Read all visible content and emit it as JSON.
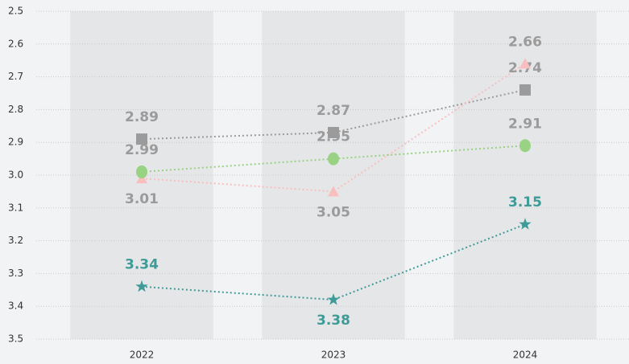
{
  "chart_data": {
    "type": "line",
    "categories": [
      "2022",
      "2023",
      "2024"
    ],
    "series": [
      {
        "color": "#9b9b9b",
        "label_color": "#9b9b9b",
        "marker": "square",
        "label_positions": [
          "above",
          "above",
          "above"
        ],
        "values": [
          2.89,
          2.87,
          2.74
        ]
      },
      {
        "color": "#f8bfbe",
        "label_color": "#9b9b9b",
        "marker": "triangle",
        "label_positions": [
          "below",
          "below",
          "above"
        ],
        "values": [
          3.01,
          3.05,
          2.66
        ]
      },
      {
        "color": "#98d282",
        "label_color": "#9b9b9b",
        "marker": "circle",
        "label_positions": [
          "above",
          "above",
          "above"
        ],
        "values": [
          2.99,
          2.95,
          2.91
        ]
      },
      {
        "color": "#3f9b97",
        "label_color": "#3f9b97",
        "marker": "star",
        "label_positions": [
          "above",
          "below",
          "above"
        ],
        "values": [
          3.34,
          3.38,
          3.15
        ]
      }
    ],
    "ylim": [
      2.5,
      3.5
    ],
    "y_inverted": true,
    "yticks": [
      2.5,
      2.6,
      2.7,
      2.8,
      2.9,
      {
        "value": 3,
        "label": "3.0"
      },
      3.1,
      3.2,
      3.3,
      3.4,
      3.5
    ],
    "grid": true
  }
}
